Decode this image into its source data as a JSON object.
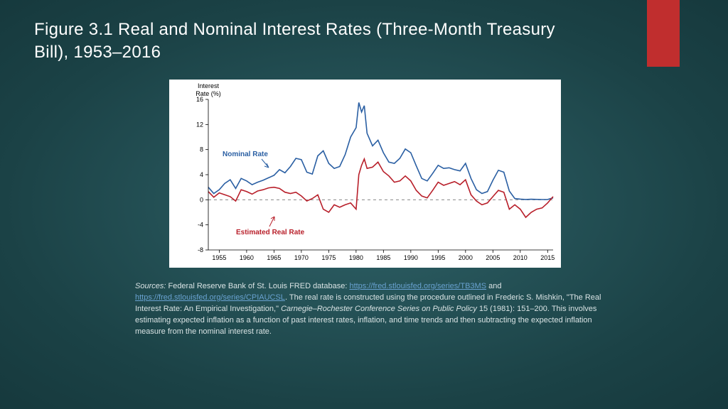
{
  "slide": {
    "title": "Figure 3.1 Real and Nominal Interest Rates (Three-Month Treasury Bill), 1953–2016",
    "background_gradient": [
      "#2f6268",
      "#1b4246",
      "#16393d"
    ],
    "accent_tab_color": "#c02e2e"
  },
  "chart": {
    "type": "line",
    "ytitle_line1": "Interest",
    "ytitle_line2": "Rate (%)",
    "background_color": "#ffffff",
    "x": {
      "min": 1953,
      "max": 2016,
      "ticks": [
        1955,
        1960,
        1965,
        1970,
        1975,
        1980,
        1985,
        1990,
        1995,
        2000,
        2005,
        2010,
        2015
      ]
    },
    "y": {
      "min": -8,
      "max": 16,
      "ticks": [
        -8,
        -4,
        0,
        4,
        8,
        12,
        16
      ]
    },
    "zero_line_color": "#888888",
    "axis_color": "#000000",
    "label_fontsize": 9,
    "title_fontsize": 9,
    "series": {
      "nominal": {
        "label": "Nominal Rate",
        "color": "#2a5fa3",
        "line_width": 1.6,
        "points": [
          [
            1953,
            2.0
          ],
          [
            1954,
            1.0
          ],
          [
            1955,
            1.6
          ],
          [
            1956,
            2.6
          ],
          [
            1957,
            3.2
          ],
          [
            1958,
            1.8
          ],
          [
            1959,
            3.4
          ],
          [
            1960,
            3.0
          ],
          [
            1961,
            2.4
          ],
          [
            1962,
            2.8
          ],
          [
            1963,
            3.1
          ],
          [
            1964,
            3.5
          ],
          [
            1965,
            3.9
          ],
          [
            1966,
            4.8
          ],
          [
            1967,
            4.3
          ],
          [
            1968,
            5.3
          ],
          [
            1969,
            6.6
          ],
          [
            1970,
            6.4
          ],
          [
            1971,
            4.4
          ],
          [
            1972,
            4.1
          ],
          [
            1973,
            7.0
          ],
          [
            1974,
            7.8
          ],
          [
            1975,
            5.8
          ],
          [
            1976,
            5.0
          ],
          [
            1977,
            5.3
          ],
          [
            1978,
            7.2
          ],
          [
            1979,
            10.0
          ],
          [
            1980,
            11.5
          ],
          [
            1980.5,
            15.5
          ],
          [
            1981,
            14.0
          ],
          [
            1981.5,
            15.0
          ],
          [
            1982,
            10.6
          ],
          [
            1983,
            8.6
          ],
          [
            1984,
            9.5
          ],
          [
            1985,
            7.5
          ],
          [
            1986,
            6.0
          ],
          [
            1987,
            5.8
          ],
          [
            1988,
            6.6
          ],
          [
            1989,
            8.1
          ],
          [
            1990,
            7.5
          ],
          [
            1991,
            5.4
          ],
          [
            1992,
            3.4
          ],
          [
            1993,
            3.0
          ],
          [
            1994,
            4.2
          ],
          [
            1995,
            5.5
          ],
          [
            1996,
            5.0
          ],
          [
            1997,
            5.1
          ],
          [
            1998,
            4.8
          ],
          [
            1999,
            4.6
          ],
          [
            2000,
            5.8
          ],
          [
            2001,
            3.4
          ],
          [
            2002,
            1.6
          ],
          [
            2003,
            1.0
          ],
          [
            2004,
            1.3
          ],
          [
            2005,
            3.1
          ],
          [
            2006,
            4.7
          ],
          [
            2007,
            4.4
          ],
          [
            2008,
            1.4
          ],
          [
            2009,
            0.2
          ],
          [
            2010,
            0.1
          ],
          [
            2011,
            0.05
          ],
          [
            2012,
            0.08
          ],
          [
            2013,
            0.06
          ],
          [
            2014,
            0.04
          ],
          [
            2015,
            0.05
          ],
          [
            2016,
            0.3
          ]
        ]
      },
      "real": {
        "label": "Estimated Real Rate",
        "color": "#b81f2a",
        "line_width": 1.6,
        "points": [
          [
            1953,
            1.3
          ],
          [
            1954,
            0.4
          ],
          [
            1955,
            1.1
          ],
          [
            1956,
            0.8
          ],
          [
            1957,
            0.5
          ],
          [
            1958,
            -0.2
          ],
          [
            1959,
            1.6
          ],
          [
            1960,
            1.3
          ],
          [
            1961,
            0.9
          ],
          [
            1962,
            1.4
          ],
          [
            1963,
            1.6
          ],
          [
            1964,
            1.9
          ],
          [
            1965,
            2.0
          ],
          [
            1966,
            1.8
          ],
          [
            1967,
            1.2
          ],
          [
            1968,
            1.0
          ],
          [
            1969,
            1.2
          ],
          [
            1970,
            0.6
          ],
          [
            1971,
            -0.2
          ],
          [
            1972,
            0.2
          ],
          [
            1973,
            0.8
          ],
          [
            1974,
            -1.5
          ],
          [
            1975,
            -2.0
          ],
          [
            1976,
            -0.8
          ],
          [
            1977,
            -1.2
          ],
          [
            1978,
            -0.8
          ],
          [
            1979,
            -0.5
          ],
          [
            1980,
            -1.5
          ],
          [
            1980.5,
            4.0
          ],
          [
            1981,
            5.5
          ],
          [
            1981.5,
            6.5
          ],
          [
            1982,
            5.0
          ],
          [
            1983,
            5.2
          ],
          [
            1984,
            6.0
          ],
          [
            1985,
            4.5
          ],
          [
            1986,
            3.8
          ],
          [
            1987,
            2.8
          ],
          [
            1988,
            3.0
          ],
          [
            1989,
            3.8
          ],
          [
            1990,
            3.0
          ],
          [
            1991,
            1.5
          ],
          [
            1992,
            0.6
          ],
          [
            1993,
            0.3
          ],
          [
            1994,
            1.5
          ],
          [
            1995,
            2.8
          ],
          [
            1996,
            2.3
          ],
          [
            1997,
            2.6
          ],
          [
            1998,
            2.9
          ],
          [
            1999,
            2.4
          ],
          [
            2000,
            3.2
          ],
          [
            2001,
            0.8
          ],
          [
            2002,
            -0.2
          ],
          [
            2003,
            -0.8
          ],
          [
            2004,
            -0.5
          ],
          [
            2005,
            0.5
          ],
          [
            2006,
            1.5
          ],
          [
            2007,
            1.2
          ],
          [
            2008,
            -1.5
          ],
          [
            2009,
            -0.8
          ],
          [
            2010,
            -1.5
          ],
          [
            2011,
            -2.8
          ],
          [
            2012,
            -2.0
          ],
          [
            2013,
            -1.5
          ],
          [
            2014,
            -1.3
          ],
          [
            2015,
            -0.5
          ],
          [
            2016,
            0.5
          ]
        ]
      }
    }
  },
  "sources": {
    "lead": "Sources:",
    "t1": " Federal Reserve Bank of St. Louis FRED database: ",
    "link1": "https://fred.stlouisfed.org/series/TB3MS",
    "t2": " and ",
    "link2": "https://fred.stlouisfed.org/series/CPIAUCSL",
    "t3": ". The real rate is constructed using the procedure outlined in Frederic S. Mishkin, \"The Real Interest Rate: An Empirical Investigation,\" ",
    "journal": "Carnegie–Rochester Conference Series on Public Policy",
    "t4": " 15 (1981): 151–200. This involves estimating expected inflation as a function of past interest rates, inflation, and time trends and then subtracting the expected inflation measure from the nominal interest rate."
  }
}
